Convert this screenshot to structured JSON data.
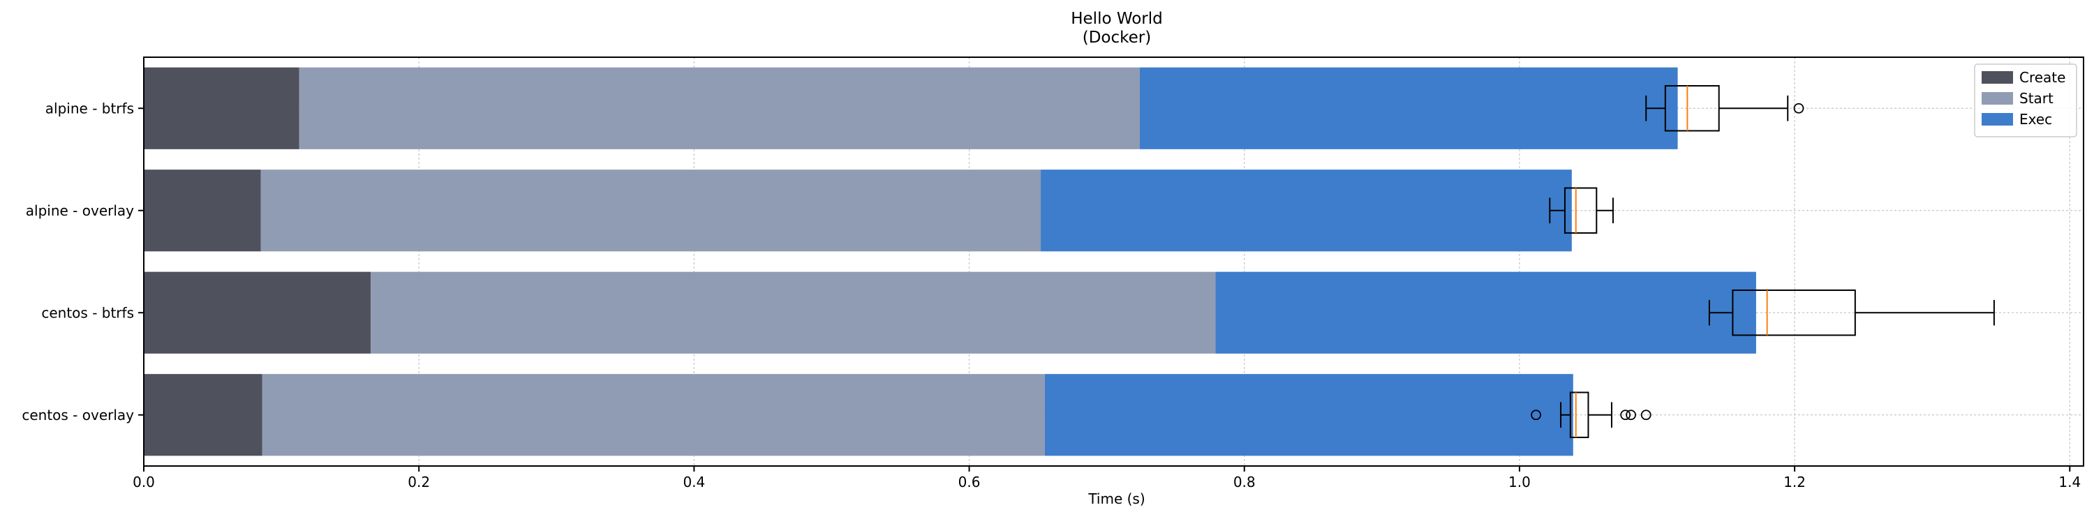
{
  "chart_data": {
    "type": "bar",
    "orientation": "horizontal",
    "stacked": true,
    "title": "Hello World",
    "subtitle": "(Docker)",
    "xlabel": "Time (s)",
    "ylabel": "",
    "xlim": [
      0,
      1.41
    ],
    "x_ticks": [
      "0.0",
      "0.2",
      "0.4",
      "0.6",
      "0.8",
      "1.0",
      "1.2",
      "1.4"
    ],
    "x_tick_values": [
      0,
      0.2,
      0.4,
      0.6,
      0.8,
      1.0,
      1.2,
      1.4
    ],
    "categories": [
      "alpine - btrfs",
      "alpine - overlay",
      "centos - btrfs",
      "centos - overlay"
    ],
    "series": [
      {
        "name": "Create",
        "color": "#4f525c",
        "values": [
          0.113,
          0.085,
          0.165,
          0.086
        ]
      },
      {
        "name": "Start",
        "color": "#909cb3",
        "values": [
          0.611,
          0.567,
          0.614,
          0.569
        ]
      },
      {
        "name": "Exec",
        "color": "#3d7dcc",
        "values": [
          0.391,
          0.386,
          0.393,
          0.384
        ]
      }
    ],
    "boxplots": [
      {
        "category": "alpine - btrfs",
        "whisker_low": 1.092,
        "q1": 1.106,
        "median": 1.122,
        "q3": 1.145,
        "whisker_high": 1.195,
        "outliers": [
          1.203
        ]
      },
      {
        "category": "alpine - overlay",
        "whisker_low": 1.022,
        "q1": 1.033,
        "median": 1.041,
        "q3": 1.056,
        "whisker_high": 1.068,
        "outliers": []
      },
      {
        "category": "centos - btrfs",
        "whisker_low": 1.138,
        "q1": 1.155,
        "median": 1.18,
        "q3": 1.244,
        "whisker_high": 1.345,
        "outliers": []
      },
      {
        "category": "centos - overlay",
        "whisker_low": 1.03,
        "q1": 1.037,
        "median": 1.041,
        "q3": 1.05,
        "whisker_high": 1.067,
        "outliers": [
          1.012,
          1.077,
          1.081,
          1.092
        ]
      }
    ],
    "colors": {
      "median": "#ff7f0e",
      "grid": "#c8c8c8"
    },
    "grid": true,
    "legend_position": "top-right"
  }
}
